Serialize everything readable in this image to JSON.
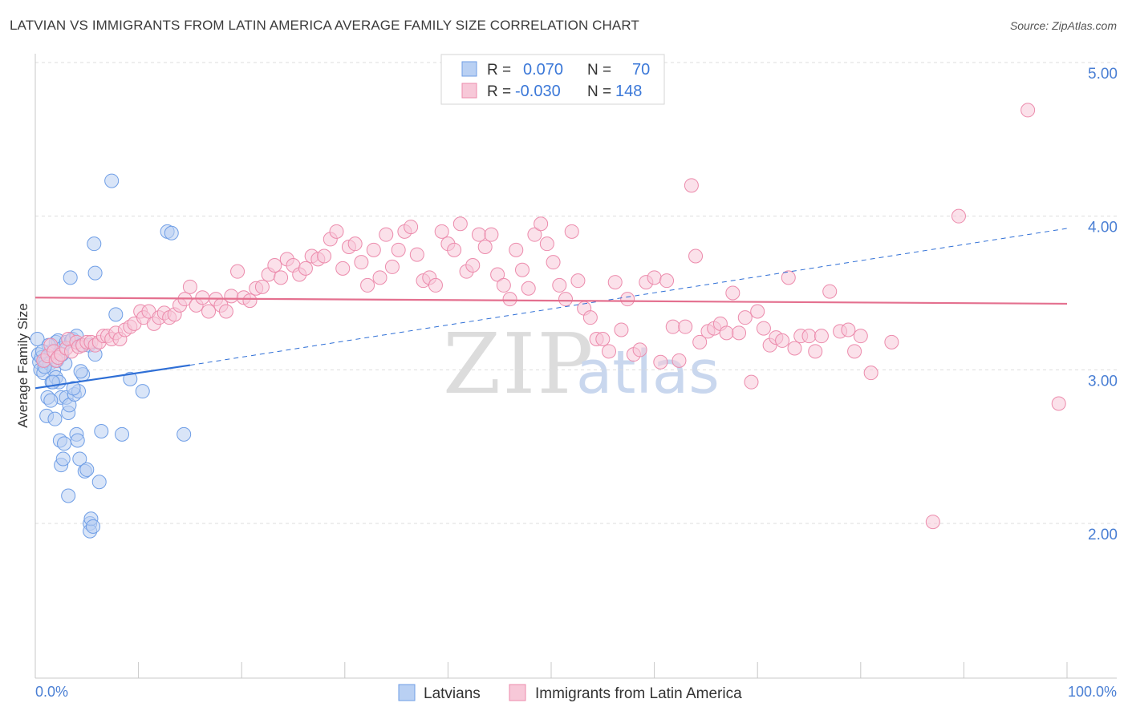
{
  "title": "LATVIAN VS IMMIGRANTS FROM LATIN AMERICA AVERAGE FAMILY SIZE CORRELATION CHART",
  "source": "Source: ZipAtlas.com",
  "watermark": {
    "part1": "ZIP",
    "part2": "atlas"
  },
  "colors": {
    "blue": "#6f9ee6",
    "blue_fill": "#b9d0f3",
    "pink": "#ec8bac",
    "pink_fill": "#f7c8d8",
    "blue_line": "#2f6fd6",
    "pink_line": "#e4708f",
    "grid": "#dddddd"
  },
  "legend": {
    "rows": [
      {
        "r_label": "R =",
        "r_value": "0.070",
        "n_label": "N =",
        "n_value": "70"
      },
      {
        "r_label": "R =",
        "r_value": "-0.030",
        "n_label": "N =",
        "n_value": "148"
      }
    ]
  },
  "chart_data": {
    "type": "scatter",
    "title": "LATVIAN VS IMMIGRANTS FROM LATIN AMERICA AVERAGE FAMILY SIZE CORRELATION CHART",
    "xlabel": "",
    "ylabel": "Average Family Size",
    "xlim": [
      0,
      100
    ],
    "ylim": [
      1.0,
      5.1
    ],
    "x_tick_labels": [
      "0.0%",
      "100.0%"
    ],
    "y_ticks": [
      2.0,
      3.0,
      4.0,
      5.0
    ],
    "y_tick_labels": [
      "2.00",
      "3.00",
      "4.00",
      "5.00"
    ],
    "grid": true,
    "legend_position": "top-center",
    "series": [
      {
        "name": "Latvians",
        "r": 0.07,
        "n": 70,
        "trend": {
          "x": [
            0,
            15,
            100
          ],
          "y": [
            2.88,
            3.03,
            3.92
          ],
          "solid_until": 15
        },
        "points": [
          [
            0.2,
            3.2
          ],
          [
            0.3,
            3.1
          ],
          [
            0.4,
            3.05
          ],
          [
            0.5,
            3.0
          ],
          [
            0.6,
            3.08
          ],
          [
            0.8,
            2.98
          ],
          [
            1.0,
            3.06
          ],
          [
            1.1,
            2.7
          ],
          [
            1.2,
            2.82
          ],
          [
            1.4,
            3.04
          ],
          [
            1.5,
            3.12
          ],
          [
            1.6,
            2.92
          ],
          [
            1.8,
            3.0
          ],
          [
            2.0,
            3.18
          ],
          [
            2.0,
            2.95
          ],
          [
            2.1,
            3.06
          ],
          [
            2.2,
            3.19
          ],
          [
            2.3,
            2.92
          ],
          [
            2.4,
            2.54
          ],
          [
            2.5,
            2.82
          ],
          [
            2.5,
            2.38
          ],
          [
            2.6,
            3.14
          ],
          [
            2.7,
            2.42
          ],
          [
            2.8,
            2.52
          ],
          [
            3.0,
            3.18
          ],
          [
            3.0,
            2.82
          ],
          [
            3.2,
            2.18
          ],
          [
            3.2,
            2.72
          ],
          [
            3.3,
            2.77
          ],
          [
            3.4,
            3.6
          ],
          [
            3.5,
            3.19
          ],
          [
            3.6,
            3.2
          ],
          [
            3.8,
            2.84
          ],
          [
            4.0,
            2.58
          ],
          [
            4.0,
            3.22
          ],
          [
            4.1,
            2.54
          ],
          [
            4.2,
            2.86
          ],
          [
            4.3,
            2.42
          ],
          [
            4.5,
            3.16
          ],
          [
            4.6,
            2.97
          ],
          [
            4.8,
            2.34
          ],
          [
            5.0,
            2.35
          ],
          [
            5.2,
            3.16
          ],
          [
            5.3,
            2.0
          ],
          [
            5.3,
            1.95
          ],
          [
            5.4,
            2.03
          ],
          [
            5.6,
            1.98
          ],
          [
            5.7,
            3.82
          ],
          [
            5.8,
            3.63
          ],
          [
            5.8,
            3.1
          ],
          [
            6.2,
            2.27
          ],
          [
            6.4,
            2.6
          ],
          [
            7.4,
            4.23
          ],
          [
            7.8,
            3.36
          ],
          [
            8.4,
            2.58
          ],
          [
            9.2,
            2.94
          ],
          [
            10.4,
            2.86
          ],
          [
            12.8,
            3.9
          ],
          [
            13.2,
            3.89
          ],
          [
            14.4,
            2.58
          ],
          [
            1.3,
            3.16
          ],
          [
            1.7,
            2.92
          ],
          [
            0.9,
            3.02
          ],
          [
            2.9,
            3.04
          ],
          [
            3.7,
            2.88
          ],
          [
            1.9,
            2.68
          ],
          [
            0.7,
            3.12
          ],
          [
            4.4,
            2.99
          ],
          [
            2.6,
            3.1
          ],
          [
            1.5,
            2.8
          ]
        ]
      },
      {
        "name": "Immigrants from Latin America",
        "r": -0.03,
        "n": 148,
        "trend": {
          "x": [
            0,
            100
          ],
          "y": [
            3.47,
            3.43
          ]
        },
        "points": [
          [
            0.8,
            3.06
          ],
          [
            1.2,
            3.09
          ],
          [
            1.5,
            3.16
          ],
          [
            1.8,
            3.12
          ],
          [
            2.0,
            3.06
          ],
          [
            2.2,
            3.08
          ],
          [
            2.5,
            3.1
          ],
          [
            3.0,
            3.14
          ],
          [
            3.2,
            3.2
          ],
          [
            3.5,
            3.12
          ],
          [
            4.0,
            3.18
          ],
          [
            4.2,
            3.15
          ],
          [
            4.6,
            3.16
          ],
          [
            5.0,
            3.18
          ],
          [
            5.4,
            3.18
          ],
          [
            5.8,
            3.16
          ],
          [
            6.2,
            3.18
          ],
          [
            6.6,
            3.22
          ],
          [
            7.0,
            3.22
          ],
          [
            7.4,
            3.2
          ],
          [
            7.8,
            3.24
          ],
          [
            8.2,
            3.2
          ],
          [
            8.7,
            3.26
          ],
          [
            9.2,
            3.28
          ],
          [
            9.6,
            3.3
          ],
          [
            10.2,
            3.38
          ],
          [
            10.5,
            3.34
          ],
          [
            11.0,
            3.38
          ],
          [
            11.5,
            3.3
          ],
          [
            12.0,
            3.34
          ],
          [
            12.5,
            3.37
          ],
          [
            13.0,
            3.34
          ],
          [
            13.5,
            3.36
          ],
          [
            14.0,
            3.42
          ],
          [
            14.5,
            3.46
          ],
          [
            15.0,
            3.54
          ],
          [
            15.6,
            3.42
          ],
          [
            16.2,
            3.47
          ],
          [
            16.8,
            3.38
          ],
          [
            17.5,
            3.46
          ],
          [
            18.0,
            3.42
          ],
          [
            18.5,
            3.38
          ],
          [
            19.0,
            3.48
          ],
          [
            19.6,
            3.64
          ],
          [
            20.2,
            3.47
          ],
          [
            20.8,
            3.45
          ],
          [
            21.4,
            3.53
          ],
          [
            22.0,
            3.54
          ],
          [
            22.6,
            3.62
          ],
          [
            23.2,
            3.68
          ],
          [
            23.8,
            3.6
          ],
          [
            24.4,
            3.72
          ],
          [
            25.0,
            3.68
          ],
          [
            25.6,
            3.62
          ],
          [
            26.2,
            3.66
          ],
          [
            26.8,
            3.74
          ],
          [
            27.4,
            3.72
          ],
          [
            28.0,
            3.74
          ],
          [
            28.6,
            3.85
          ],
          [
            29.2,
            3.9
          ],
          [
            29.8,
            3.66
          ],
          [
            30.4,
            3.8
          ],
          [
            31.0,
            3.82
          ],
          [
            31.6,
            3.7
          ],
          [
            32.2,
            3.55
          ],
          [
            32.8,
            3.78
          ],
          [
            33.4,
            3.6
          ],
          [
            34.0,
            3.88
          ],
          [
            34.6,
            3.67
          ],
          [
            35.2,
            3.78
          ],
          [
            35.8,
            3.9
          ],
          [
            36.4,
            3.93
          ],
          [
            37.0,
            3.75
          ],
          [
            37.6,
            3.58
          ],
          [
            38.2,
            3.6
          ],
          [
            38.8,
            3.55
          ],
          [
            39.4,
            3.9
          ],
          [
            40.0,
            3.82
          ],
          [
            40.6,
            3.78
          ],
          [
            41.2,
            3.95
          ],
          [
            41.8,
            3.64
          ],
          [
            42.4,
            3.68
          ],
          [
            43.0,
            3.88
          ],
          [
            43.6,
            3.8
          ],
          [
            44.2,
            3.88
          ],
          [
            44.8,
            3.62
          ],
          [
            45.4,
            3.55
          ],
          [
            46.0,
            3.46
          ],
          [
            46.6,
            3.78
          ],
          [
            47.2,
            3.65
          ],
          [
            47.8,
            3.53
          ],
          [
            48.4,
            3.88
          ],
          [
            49.0,
            3.95
          ],
          [
            49.6,
            3.82
          ],
          [
            50.2,
            3.7
          ],
          [
            50.8,
            3.55
          ],
          [
            51.4,
            3.46
          ],
          [
            52.0,
            3.9
          ],
          [
            52.6,
            3.58
          ],
          [
            53.2,
            3.4
          ],
          [
            53.8,
            3.34
          ],
          [
            54.4,
            3.2
          ],
          [
            55.0,
            3.2
          ],
          [
            55.6,
            3.12
          ],
          [
            56.2,
            3.57
          ],
          [
            56.8,
            3.26
          ],
          [
            57.4,
            3.46
          ],
          [
            58.0,
            3.1
          ],
          [
            58.6,
            3.13
          ],
          [
            59.2,
            3.57
          ],
          [
            60.0,
            3.6
          ],
          [
            60.6,
            3.05
          ],
          [
            61.2,
            3.58
          ],
          [
            61.8,
            3.28
          ],
          [
            62.4,
            3.06
          ],
          [
            63.0,
            3.28
          ],
          [
            63.6,
            4.2
          ],
          [
            64.0,
            3.74
          ],
          [
            64.4,
            3.18
          ],
          [
            65.2,
            3.25
          ],
          [
            65.8,
            3.27
          ],
          [
            66.4,
            3.3
          ],
          [
            67.0,
            3.24
          ],
          [
            67.6,
            3.5
          ],
          [
            68.2,
            3.24
          ],
          [
            68.8,
            3.34
          ],
          [
            69.4,
            2.92
          ],
          [
            70.0,
            3.38
          ],
          [
            70.6,
            3.27
          ],
          [
            71.2,
            3.16
          ],
          [
            71.8,
            3.21
          ],
          [
            72.4,
            3.19
          ],
          [
            73.0,
            3.6
          ],
          [
            73.6,
            3.14
          ],
          [
            74.2,
            3.22
          ],
          [
            75.0,
            3.22
          ],
          [
            75.6,
            3.12
          ],
          [
            76.2,
            3.22
          ],
          [
            77.0,
            3.51
          ],
          [
            78.0,
            3.25
          ],
          [
            78.8,
            3.26
          ],
          [
            79.4,
            3.12
          ],
          [
            80.0,
            3.22
          ],
          [
            81.0,
            2.98
          ],
          [
            83.0,
            3.18
          ],
          [
            87.0,
            2.01
          ],
          [
            89.5,
            4.0
          ],
          [
            96.2,
            4.69
          ],
          [
            99.2,
            2.78
          ]
        ]
      }
    ]
  },
  "bottom_legend": [
    {
      "label": "Latvians"
    },
    {
      "label": "Immigrants from Latin America"
    }
  ]
}
